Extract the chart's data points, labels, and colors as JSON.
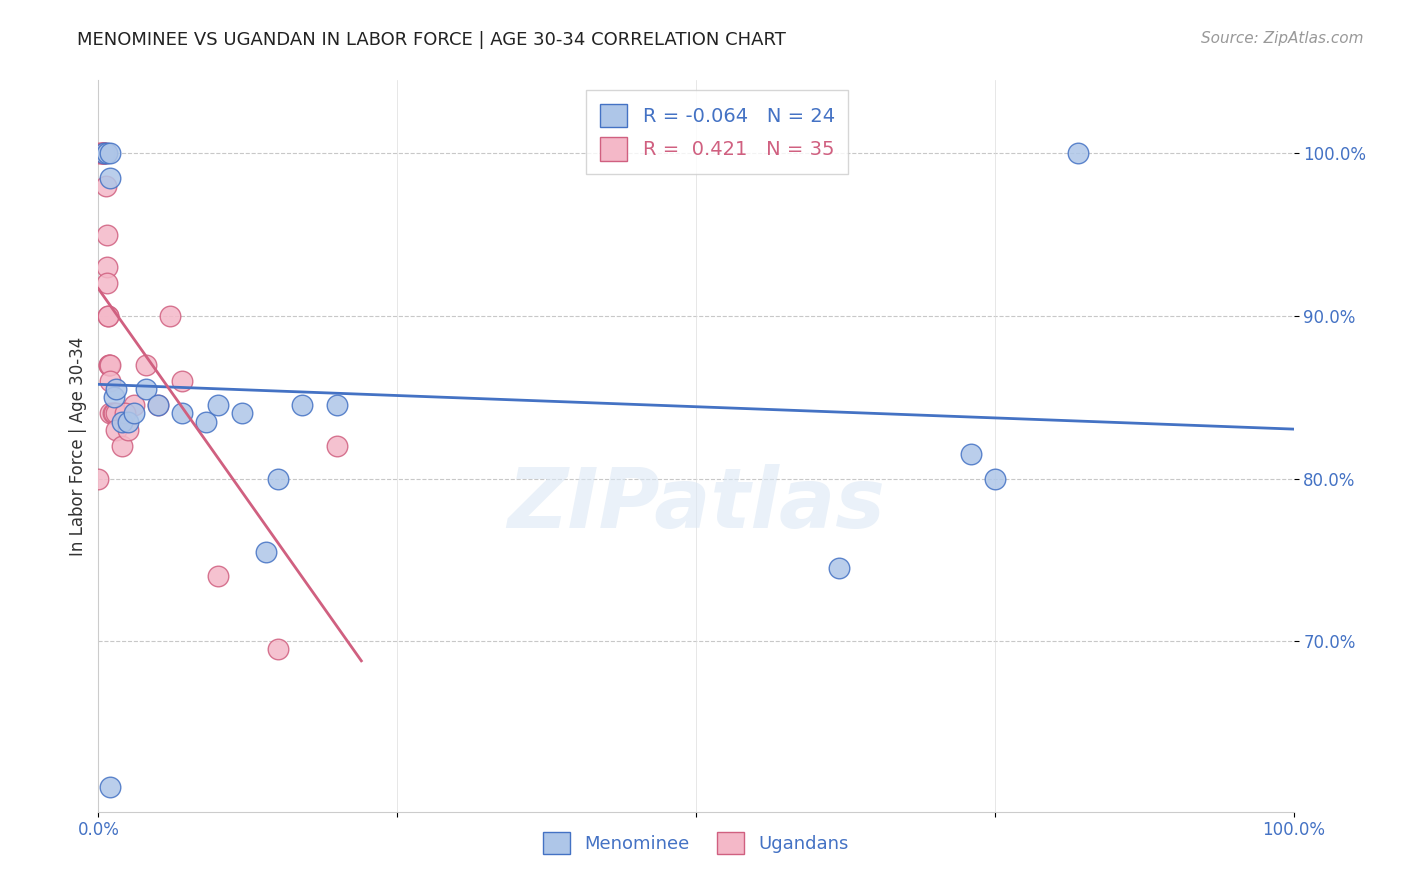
{
  "title": "MENOMINEE VS UGANDAN IN LABOR FORCE | AGE 30-34 CORRELATION CHART",
  "source": "Source: ZipAtlas.com",
  "ylabel": "In Labor Force | Age 30-34",
  "watermark": "ZIPatlas",
  "menominee_R": -0.064,
  "menominee_N": 24,
  "ugandan_R": 0.421,
  "ugandan_N": 35,
  "menominee_color": "#aec6e8",
  "menominee_line_color": "#4472c4",
  "ugandan_color": "#f4b8c8",
  "ugandan_line_color": "#d06080",
  "x_min": 0.0,
  "x_max": 1.0,
  "y_min": 0.595,
  "y_max": 1.045,
  "y_ticks": [
    0.7,
    0.8,
    0.9,
    1.0
  ],
  "y_tick_labels": [
    "70.0%",
    "80.0%",
    "90.0%",
    "100.0%"
  ],
  "x_ticks": [
    0.0,
    0.25,
    0.5,
    0.75,
    1.0
  ],
  "x_tick_labels": [
    "0.0%",
    "",
    "",
    "",
    "100.0%"
  ],
  "menominee_x": [
    0.005,
    0.007,
    0.01,
    0.01,
    0.013,
    0.015,
    0.02,
    0.025,
    0.03,
    0.04,
    0.05,
    0.07,
    0.09,
    0.1,
    0.12,
    0.14,
    0.15,
    0.17,
    0.2,
    0.62,
    0.73,
    0.75,
    0.82,
    0.01
  ],
  "menominee_y": [
    1.0,
    1.0,
    1.0,
    0.985,
    0.85,
    0.855,
    0.835,
    0.835,
    0.84,
    0.855,
    0.845,
    0.84,
    0.835,
    0.845,
    0.84,
    0.755,
    0.8,
    0.845,
    0.845,
    0.745,
    0.815,
    0.8,
    1.0,
    0.61
  ],
  "ugandan_x": [
    0.0,
    0.0,
    0.002,
    0.003,
    0.004,
    0.004,
    0.005,
    0.005,
    0.006,
    0.006,
    0.007,
    0.007,
    0.007,
    0.008,
    0.008,
    0.009,
    0.009,
    0.01,
    0.01,
    0.01,
    0.012,
    0.013,
    0.015,
    0.015,
    0.02,
    0.025,
    0.03,
    0.04,
    0.05,
    0.06,
    0.07,
    0.1,
    0.15,
    0.2,
    0.022
  ],
  "ugandan_y": [
    0.8,
    1.0,
    1.0,
    1.0,
    1.0,
    1.0,
    1.0,
    1.0,
    1.0,
    0.98,
    0.95,
    0.93,
    0.92,
    0.9,
    0.9,
    0.87,
    0.87,
    0.87,
    0.86,
    0.84,
    0.84,
    0.84,
    0.84,
    0.83,
    0.82,
    0.83,
    0.845,
    0.87,
    0.845,
    0.9,
    0.86,
    0.74,
    0.695,
    0.82,
    0.84
  ],
  "background_color": "#ffffff",
  "grid_color": "#c8c8c8"
}
